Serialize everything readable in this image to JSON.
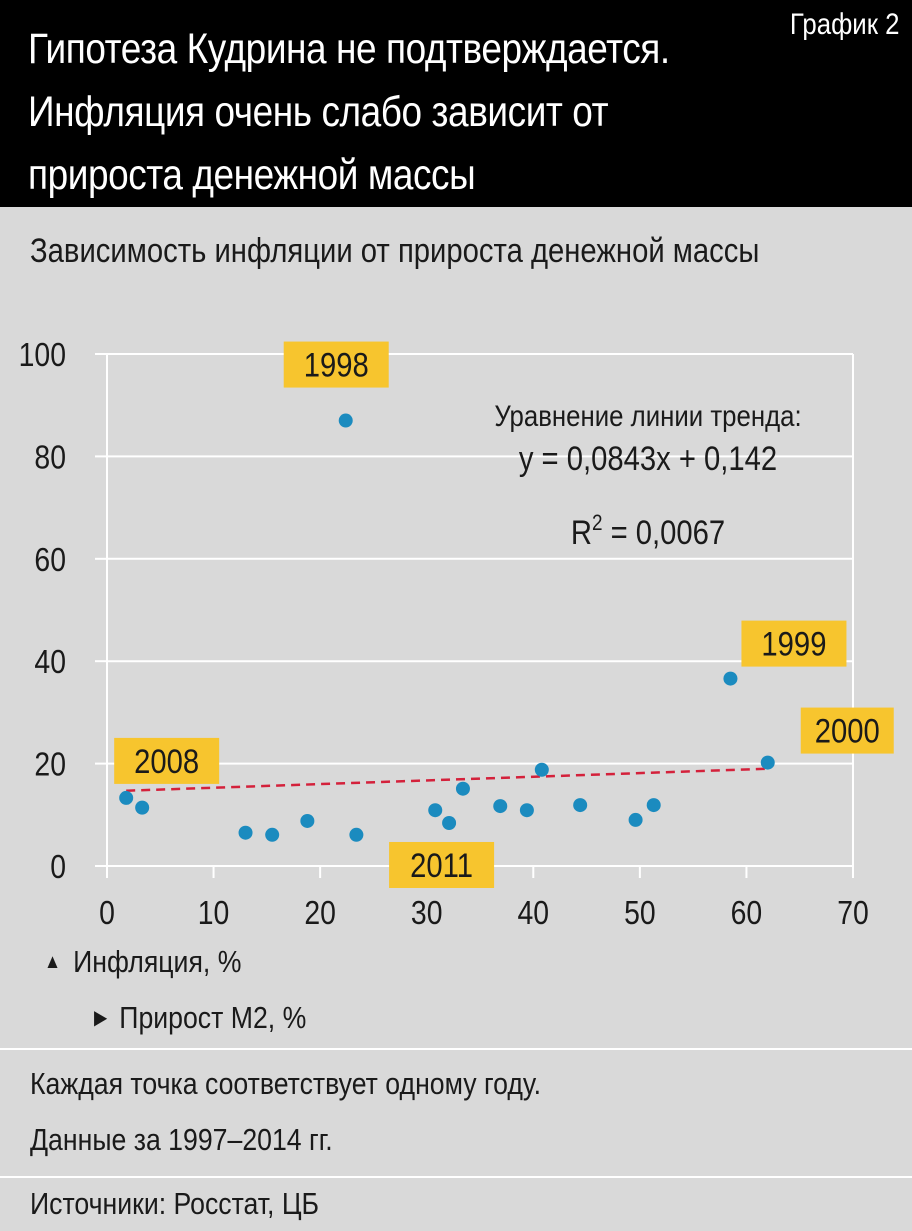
{
  "header": {
    "title": "Гипотеза Кудрина не подтверждается. Инфляция очень слабо зависит от прироста денежной массы",
    "chart_number": "График 2"
  },
  "subtitle": "Зависимость инфляции от прироста денежной массы",
  "legend": {
    "y_label": "Инфляция, %",
    "x_label": "Прирост М2, %"
  },
  "notes": {
    "line1": "Каждая точка соответствует одному году.",
    "line2": "Данные за 1997–2014 гг.",
    "source": "Источники: Росстат, ЦБ"
  },
  "colors": {
    "point": "#1b8bbf",
    "trend": "#d4213b",
    "label_bg": "#f7c52e",
    "grid": "#ffffff",
    "background": "#d9d9d9"
  },
  "chart_data": {
    "type": "scatter",
    "xlim": [
      0,
      70
    ],
    "ylim": [
      0,
      100
    ],
    "x_ticks": [
      0,
      10,
      20,
      30,
      40,
      50,
      60,
      70
    ],
    "y_ticks": [
      0,
      20,
      40,
      60,
      80,
      100
    ],
    "grid": true,
    "points": [
      {
        "x": 1.8,
        "y": 13.3
      },
      {
        "x": 3.3,
        "y": 11.4
      },
      {
        "x": 13.0,
        "y": 6.5
      },
      {
        "x": 15.5,
        "y": 6.1
      },
      {
        "x": 18.8,
        "y": 8.8
      },
      {
        "x": 22.4,
        "y": 87.0,
        "label": "1998"
      },
      {
        "x": 23.4,
        "y": 6.1
      },
      {
        "x": 30.8,
        "y": 10.9
      },
      {
        "x": 32.1,
        "y": 8.4,
        "label": "2011"
      },
      {
        "x": 33.4,
        "y": 15.1
      },
      {
        "x": 36.9,
        "y": 11.7
      },
      {
        "x": 39.4,
        "y": 10.9
      },
      {
        "x": 40.8,
        "y": 18.8
      },
      {
        "x": 44.4,
        "y": 11.9
      },
      {
        "x": 49.6,
        "y": 9.0
      },
      {
        "x": 51.3,
        "y": 11.9
      },
      {
        "x": 58.5,
        "y": 36.6,
        "label": "1999"
      },
      {
        "x": 62.0,
        "y": 20.2,
        "label": "2000"
      }
    ],
    "point_label_extra": [
      {
        "label": "2008",
        "x": 1.8,
        "y": 13.3
      }
    ],
    "trendline": {
      "x0": 1.8,
      "y0": 14.7,
      "x1": 62.0,
      "y1": 19.0,
      "style": "dashed",
      "equation_title": "Уравнение линии тренда:",
      "equation": "y = 0,0843x + 0,142",
      "r2_label": "R",
      "r2_sup": "2",
      "r2_value": " = 0,0067"
    }
  }
}
